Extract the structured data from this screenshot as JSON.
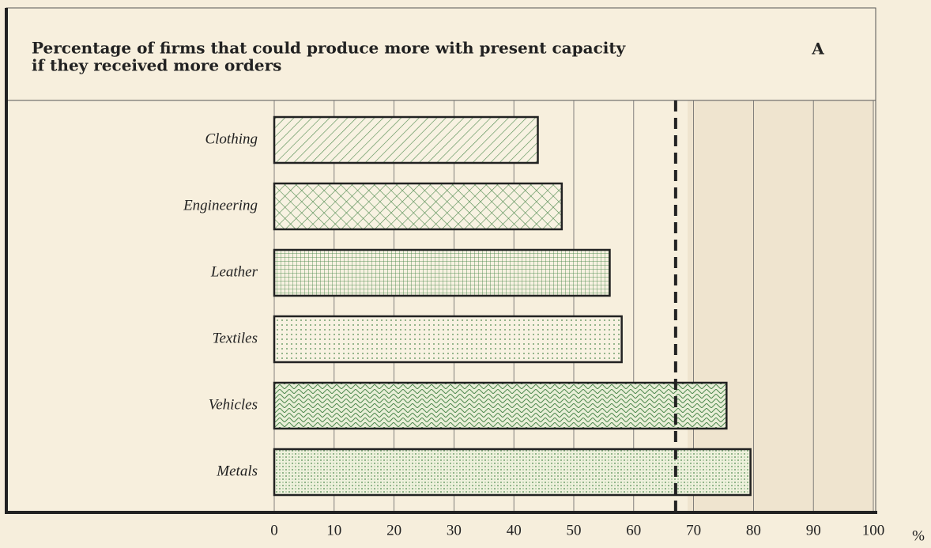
{
  "chart_data": {
    "type": "hbar",
    "title": [
      "Percentage of firms that could produce more with present capacity",
      "if they received more orders"
    ],
    "panel_label": "A",
    "axis_unit": "%",
    "categories": [
      "Clothing",
      "Engineering",
      "Leather",
      "Textiles",
      "Vehicles",
      "Metals"
    ],
    "values": [
      44,
      48,
      56,
      58,
      75.5,
      79.5
    ],
    "color": "#4f8a4f",
    "reference_value": 67,
    "xlim": [
      0,
      100
    ],
    "xticks": [
      0,
      10,
      20,
      30,
      40,
      50,
      60,
      70,
      80,
      90,
      100
    ],
    "grid": true
  }
}
